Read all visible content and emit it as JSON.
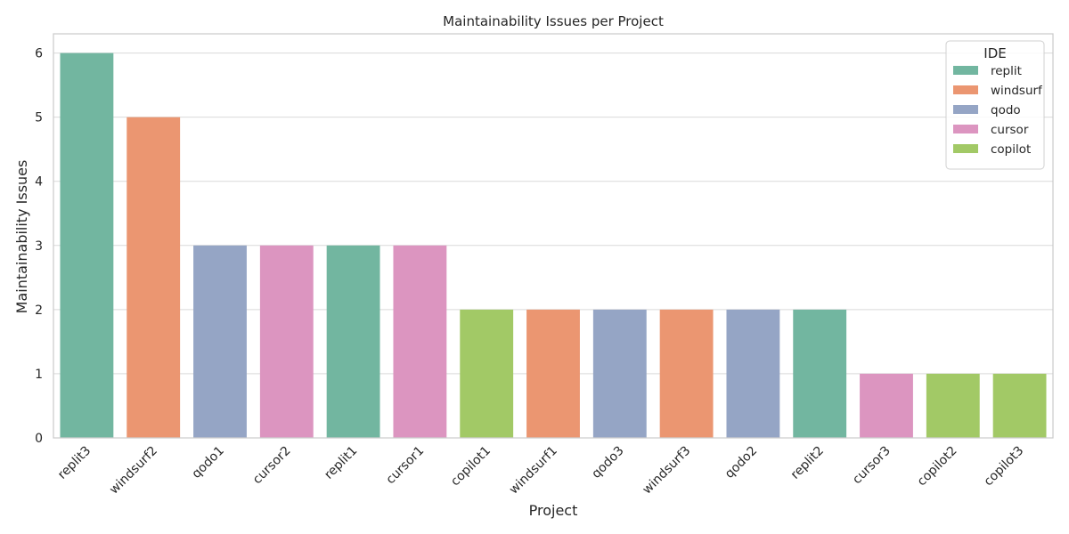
{
  "chart_data": {
    "type": "bar",
    "title": "Maintainability Issues per Project",
    "xlabel": "Project",
    "ylabel": "Maintainability Issues",
    "ylim": [
      0,
      6.3
    ],
    "yticks": [
      0,
      1,
      2,
      3,
      4,
      5,
      6
    ],
    "grid": true,
    "legend": {
      "title": "IDE",
      "placement": "top-right"
    },
    "categories": [
      "replit3",
      "windsurf2",
      "qodo1",
      "cursor2",
      "replit1",
      "cursor1",
      "copilot1",
      "windsurf1",
      "qodo3",
      "windsurf3",
      "qodo2",
      "replit2",
      "cursor3",
      "copilot2",
      "copilot3"
    ],
    "values": [
      6,
      5,
      3,
      3,
      3,
      3,
      2,
      2,
      2,
      2,
      2,
      2,
      1,
      1,
      1
    ],
    "hue": [
      "replit",
      "windsurf",
      "qodo",
      "cursor",
      "replit",
      "cursor",
      "copilot",
      "windsurf",
      "qodo",
      "windsurf",
      "qodo",
      "replit",
      "cursor",
      "copilot",
      "copilot"
    ],
    "series": [
      {
        "name": "replit",
        "color": "#72b6a0"
      },
      {
        "name": "windsurf",
        "color": "#eb9671"
      },
      {
        "name": "qodo",
        "color": "#95a5c5"
      },
      {
        "name": "cursor",
        "color": "#dc95c0"
      },
      {
        "name": "copilot",
        "color": "#a2c966"
      }
    ]
  }
}
